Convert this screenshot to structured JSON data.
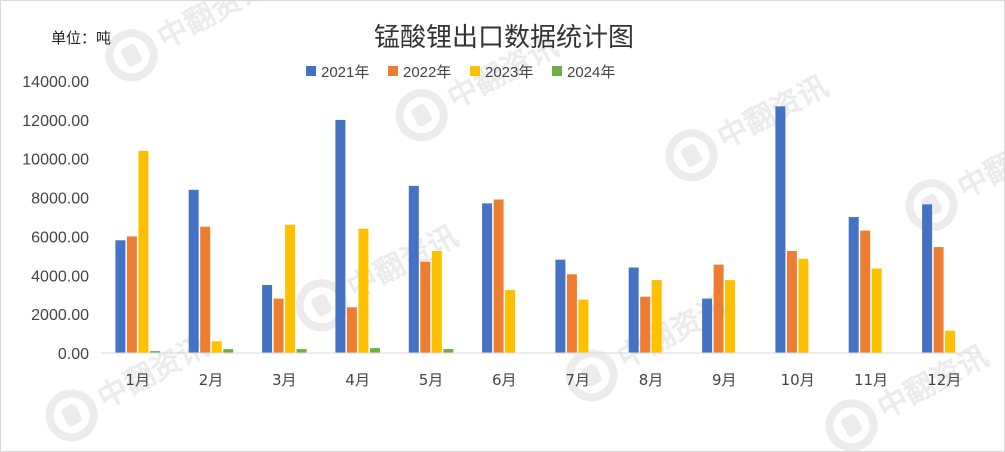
{
  "chart_data": {
    "type": "bar",
    "title": "锰酸锂出口数据统计图",
    "unit_label": "单位：吨",
    "categories": [
      "1月",
      "2月",
      "3月",
      "4月",
      "5月",
      "6月",
      "7月",
      "8月",
      "9月",
      "10月",
      "11月",
      "12月"
    ],
    "series": [
      {
        "name": "2021年",
        "color": "#4472c4",
        "values": [
          5800,
          8400,
          3500,
          12000,
          8600,
          7700,
          4800,
          4400,
          2800,
          12700,
          7000,
          7650
        ]
      },
      {
        "name": "2022年",
        "color": "#ed7d31",
        "values": [
          6000,
          6500,
          2800,
          2350,
          4700,
          7900,
          4050,
          2900,
          4550,
          5250,
          6300,
          5450
        ]
      },
      {
        "name": "2023年",
        "color": "#ffc000",
        "values": [
          10400,
          600,
          6600,
          6400,
          5250,
          3250,
          2750,
          3750,
          3750,
          4850,
          4350,
          1150
        ]
      },
      {
        "name": "2024年",
        "color": "#70ad47",
        "values": [
          100,
          200,
          200,
          250,
          200,
          null,
          null,
          null,
          null,
          null,
          null,
          null
        ]
      }
    ],
    "y_ticks": [
      "0.00",
      "2000.00",
      "4000.00",
      "6000.00",
      "8000.00",
      "10000.00",
      "12000.00",
      "14000.00"
    ],
    "ylim": [
      0,
      14000
    ],
    "grid": false,
    "legend_position": "top-center"
  },
  "watermark": {
    "text": "中翻资讯",
    "color": "#ececec"
  }
}
